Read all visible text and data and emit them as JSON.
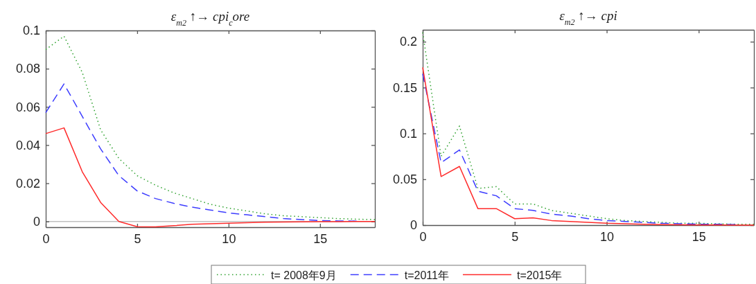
{
  "chart_data": [
    {
      "type": "line",
      "title": "ε$_{m2}$ ↑→  cpi$_{c}$ore",
      "x": [
        0,
        1,
        2,
        3,
        4,
        5,
        6,
        7,
        8,
        9,
        10,
        11,
        12,
        13,
        14,
        15,
        16,
        17,
        18
      ],
      "xlim": [
        0,
        18
      ],
      "xticks": [
        0,
        5,
        10,
        15
      ],
      "ylim": [
        -0.003,
        0.1
      ],
      "yticks": [
        0,
        0.02,
        0.04,
        0.06,
        0.08,
        0.1
      ],
      "grid": false,
      "legend": "bottom",
      "ref_lines": [
        {
          "axis": "y",
          "value": 0,
          "color": "#c0c0c0"
        }
      ],
      "series": [
        {
          "name": "t= 2008年9月",
          "color": "#2ca02c",
          "line_style": "dotted",
          "values": [
            0.09,
            0.097,
            0.078,
            0.048,
            0.033,
            0.024,
            0.019,
            0.015,
            0.012,
            0.009,
            0.007,
            0.0055,
            0.004,
            0.003,
            0.0025,
            0.002,
            0.0015,
            0.0012,
            0.001
          ]
        },
        {
          "name": "t=2011年",
          "color": "#3c3cff",
          "line_style": "dashed",
          "values": [
            0.057,
            0.072,
            0.055,
            0.038,
            0.024,
            0.016,
            0.012,
            0.0095,
            0.0075,
            0.006,
            0.0045,
            0.0035,
            0.0025,
            0.0015,
            0.001,
            0.0005,
            0.0003,
            0.0002,
            null
          ]
        },
        {
          "name": "t=2015年",
          "color": "#ff2a2a",
          "line_style": "solid",
          "values": [
            0.046,
            0.049,
            0.026,
            0.01,
            0.0,
            -0.0027,
            -0.0028,
            -0.0022,
            -0.0015,
            -0.0012,
            -0.0009,
            -0.0006,
            -0.0004,
            -0.0003,
            -0.0002,
            -0.0001,
            -0.0001,
            0,
            0
          ]
        }
      ]
    },
    {
      "type": "line",
      "title": "ε$_{m2}$ ↑→  cpi",
      "x": [
        0,
        1,
        2,
        3,
        4,
        5,
        6,
        7,
        8,
        9,
        10,
        11,
        12,
        13,
        14,
        15,
        16,
        17,
        18
      ],
      "xlim": [
        0,
        18
      ],
      "xticks": [
        0,
        5,
        10,
        15
      ],
      "ylim": [
        0,
        0.213
      ],
      "yticks": [
        0,
        0.05,
        0.1,
        0.15,
        0.2
      ],
      "grid": false,
      "legend": false,
      "series": [
        {
          "color": "#2ca02c",
          "line_style": "dotted",
          "values": [
            0.21,
            0.075,
            0.108,
            0.04,
            0.042,
            0.023,
            0.023,
            0.016,
            0.013,
            0.01,
            0.007,
            0.005,
            0.004,
            0.003,
            0.002,
            0.002,
            0.0015,
            0.001,
            0.001
          ]
        },
        {
          "color": "#3c3cff",
          "line_style": "dashed",
          "values": [
            0.165,
            0.068,
            0.082,
            0.037,
            0.032,
            0.018,
            0.016,
            0.012,
            0.01,
            0.007,
            0.005,
            0.004,
            0.003,
            0.002,
            0.0015,
            0.001,
            0.001,
            0.0005,
            null
          ]
        },
        {
          "color": "#ff2a2a",
          "line_style": "solid",
          "values": [
            0.172,
            0.053,
            0.064,
            0.018,
            0.018,
            0.007,
            0.008,
            0.005,
            0.004,
            0.003,
            0.002,
            0.0015,
            0.001,
            0.0005,
            0.0003,
            0.0002,
            0.0001,
            0,
            0
          ]
        }
      ]
    }
  ]
}
